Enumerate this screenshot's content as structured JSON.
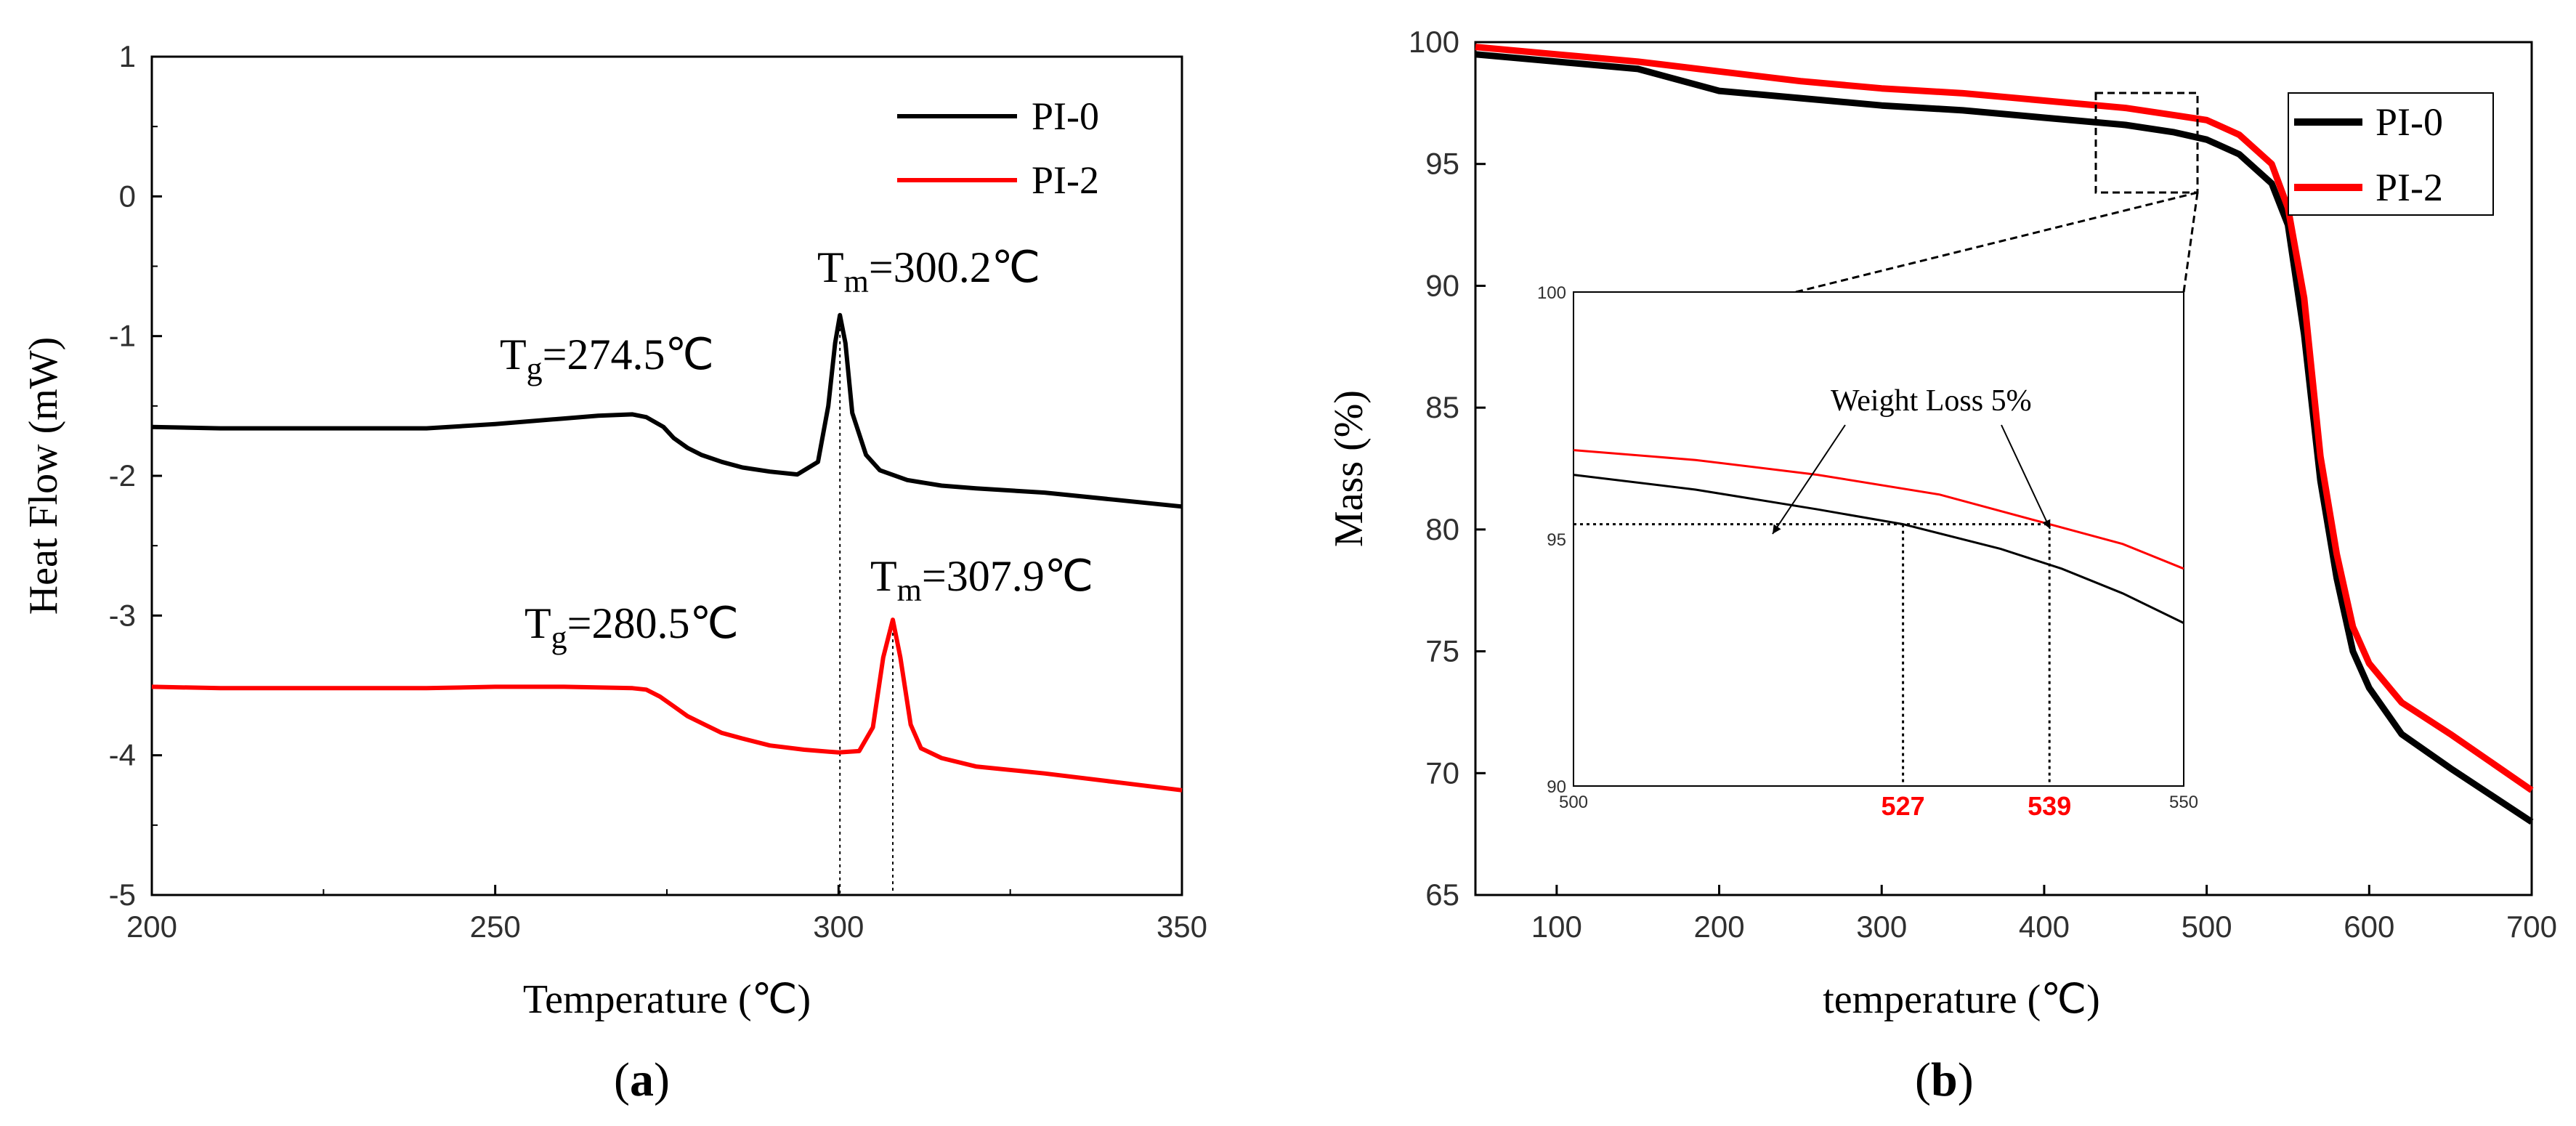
{
  "chart_data": [
    {
      "id": "a",
      "type": "line",
      "caption": "a",
      "xlabel": "Temperature (℃)",
      "ylabel": "Heat Flow (mW)",
      "xlim": [
        200,
        350
      ],
      "ylim": [
        -5,
        1
      ],
      "x_ticks": [
        200,
        250,
        300,
        350
      ],
      "x_tick_labels": [
        "200",
        "250",
        "300",
        "350"
      ],
      "y_ticks": [
        1,
        0,
        -1,
        -2,
        -3,
        -4,
        -5
      ],
      "y_tick_labels": [
        "1",
        "0",
        "-1",
        "-2",
        "-3",
        "-4",
        "-5"
      ],
      "legend": [
        "PI-0",
        "PI-2"
      ],
      "series": [
        {
          "name": "PI-0",
          "color": "#000000",
          "x": [
            200,
            210,
            220,
            230,
            240,
            250,
            260,
            265,
            270,
            272,
            274.5,
            276,
            278,
            280,
            283,
            286,
            290,
            294,
            297,
            298.5,
            299.5,
            300.2,
            301,
            302,
            304,
            306,
            310,
            315,
            320,
            330,
            340,
            350
          ],
          "y": [
            -1.65,
            -1.66,
            -1.66,
            -1.66,
            -1.66,
            -1.63,
            -1.59,
            -1.57,
            -1.56,
            -1.58,
            -1.65,
            -1.73,
            -1.8,
            -1.85,
            -1.9,
            -1.94,
            -1.97,
            -1.99,
            -1.9,
            -1.5,
            -1.05,
            -0.85,
            -1.05,
            -1.55,
            -1.85,
            -1.96,
            -2.03,
            -2.07,
            -2.09,
            -2.12,
            -2.17,
            -2.22
          ]
        },
        {
          "name": "PI-2",
          "color": "#ff0000",
          "x": [
            200,
            210,
            220,
            230,
            240,
            250,
            260,
            270,
            272,
            274,
            276,
            278,
            280.5,
            283,
            286,
            290,
            295,
            300,
            303,
            305,
            306.5,
            307.9,
            309,
            310.5,
            312,
            315,
            320,
            330,
            340,
            350
          ],
          "y": [
            -3.51,
            -3.52,
            -3.52,
            -3.52,
            -3.52,
            -3.51,
            -3.51,
            -3.52,
            -3.53,
            -3.58,
            -3.65,
            -3.72,
            -3.78,
            -3.84,
            -3.88,
            -3.93,
            -3.96,
            -3.98,
            -3.97,
            -3.8,
            -3.3,
            -3.03,
            -3.3,
            -3.78,
            -3.95,
            -4.02,
            -4.08,
            -4.13,
            -4.19,
            -4.25
          ]
        }
      ],
      "annotations": [
        {
          "label": "T",
          "subscript": "g",
          "value": "=274.5℃",
          "series": "PI-0"
        },
        {
          "label": "T",
          "subscript": "m",
          "value": "=300.2℃",
          "series": "PI-0"
        },
        {
          "label": "T",
          "subscript": "g",
          "value": "=280.5℃",
          "series": "PI-2"
        },
        {
          "label": "T",
          "subscript": "m",
          "value": "=307.9℃",
          "series": "PI-2"
        }
      ],
      "marker_lines_x": [
        300.2,
        307.9
      ]
    },
    {
      "id": "b",
      "type": "line",
      "caption": "b",
      "xlabel": "temperature (℃)",
      "ylabel": "Mass (%)",
      "xlim": [
        50,
        700
      ],
      "ylim": [
        65,
        100
      ],
      "x_ticks": [
        100,
        200,
        300,
        400,
        500,
        600,
        700
      ],
      "x_tick_labels": [
        "100",
        "200",
        "300",
        "400",
        "500",
        "600",
        "700"
      ],
      "y_ticks": [
        100,
        95,
        90,
        85,
        80,
        75,
        70,
        65
      ],
      "y_tick_labels": [
        "100",
        "95",
        "90",
        "85",
        "80",
        "75",
        "70",
        "65"
      ],
      "legend": [
        "PI-0",
        "PI-2"
      ],
      "series": [
        {
          "name": "PI-0",
          "color": "#000000",
          "x": [
            50,
            100,
            150,
            200,
            250,
            300,
            350,
            400,
            450,
            480,
            500,
            520,
            540,
            550,
            560,
            570,
            580,
            590,
            600,
            620,
            650,
            700
          ],
          "y": [
            99.5,
            99.2,
            98.9,
            98.0,
            97.7,
            97.4,
            97.2,
            96.9,
            96.6,
            96.3,
            96.0,
            95.4,
            94.2,
            92.5,
            88.0,
            82.0,
            78.0,
            75.0,
            73.5,
            71.6,
            70.2,
            68.0
          ],
          "inset_x": [
            500,
            510,
            520,
            527,
            535,
            540,
            545,
            550
          ],
          "inset_y": [
            96.3,
            96.0,
            95.6,
            95.3,
            94.8,
            94.4,
            93.9,
            93.3
          ]
        },
        {
          "name": "PI-2",
          "color": "#ff0000",
          "x": [
            50,
            100,
            150,
            200,
            250,
            300,
            350,
            400,
            450,
            480,
            500,
            520,
            540,
            550,
            560,
            570,
            580,
            590,
            600,
            620,
            650,
            700
          ],
          "y": [
            99.8,
            99.5,
            99.2,
            98.8,
            98.4,
            98.1,
            97.9,
            97.6,
            97.3,
            97.0,
            96.8,
            96.2,
            95.0,
            93.2,
            89.5,
            83.0,
            79.0,
            76.0,
            74.5,
            72.9,
            71.6,
            69.3
          ],
          "inset_x": [
            500,
            510,
            520,
            530,
            539,
            545,
            550
          ],
          "inset_y": [
            96.8,
            96.6,
            96.3,
            95.9,
            95.3,
            94.9,
            94.4
          ]
        }
      ],
      "inset": {
        "xlim": [
          500,
          550
        ],
        "ylim": [
          90,
          100
        ],
        "x_tick_labels": [
          "500",
          "550"
        ],
        "y_ticks": [
          100,
          95,
          90
        ],
        "y_tick_labels": [
          "100",
          "95",
          "90"
        ],
        "annotation": "Weight Loss 5%",
        "threshold_y": 95.3,
        "marker_labels": [
          "527",
          "539"
        ],
        "marker_x": [
          527,
          539
        ],
        "marker_color": "#ff0000"
      }
    }
  ]
}
